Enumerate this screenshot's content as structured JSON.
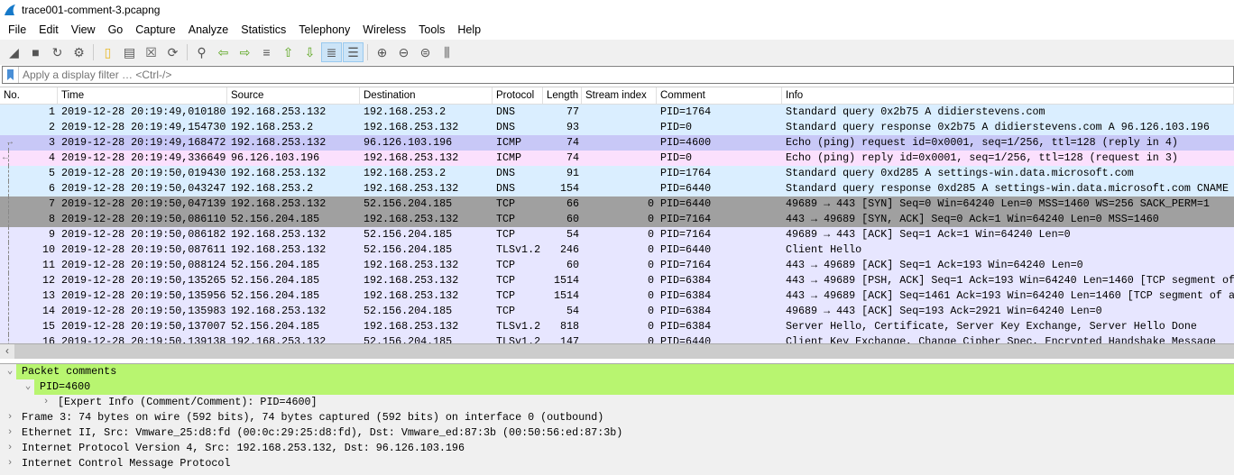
{
  "window": {
    "title": "trace001-comment-3.pcapng"
  },
  "menu": [
    "File",
    "Edit",
    "View",
    "Go",
    "Capture",
    "Analyze",
    "Statistics",
    "Telephony",
    "Wireless",
    "Tools",
    "Help"
  ],
  "toolbar": [
    "shark-fin-start-icon",
    "stop-icon",
    "restart-icon",
    "options-gear-icon",
    "open-file-icon",
    "save-file-icon",
    "close-file-icon",
    "reload-icon",
    "find-icon",
    "back-icon",
    "forward-icon",
    "go-to-packet-icon",
    "first-packet-icon",
    "last-packet-icon",
    "autoscroll-icon",
    "colorize-icon",
    "zoom-in-icon",
    "zoom-out-icon",
    "normal-size-icon",
    "resize-columns-icon"
  ],
  "filter": {
    "placeholder": "Apply a display filter … <Ctrl-/>"
  },
  "colors": {
    "dns": "#daeeff",
    "icmp_req": "#c8c8f7",
    "icmp_rep": "#fbe0fd",
    "tcp_flag": "#a0a0a0",
    "tcp": "#e7e6ff",
    "comment_green": "#b8f570"
  },
  "columns": [
    "No.",
    "Time",
    "Source",
    "Destination",
    "Protocol",
    "Length",
    "Stream index",
    "Comment",
    "Info"
  ],
  "packets": [
    {
      "no": "1",
      "time": "2019-12-28 20:19:49,010180",
      "src": "192.168.253.132",
      "dst": "192.168.253.2",
      "proto": "DNS",
      "len": "77",
      "stream": "",
      "comment": "PID=1764",
      "info": "Standard query 0x2b75 A didierstevens.com",
      "color": "dns"
    },
    {
      "no": "2",
      "time": "2019-12-28 20:19:49,154730",
      "src": "192.168.253.2",
      "dst": "192.168.253.132",
      "proto": "DNS",
      "len": "93",
      "stream": "",
      "comment": "PID=0",
      "info": "Standard query response 0x2b75 A didierstevens.com A 96.126.103.196",
      "color": "dns"
    },
    {
      "no": "3",
      "time": "2019-12-28 20:19:49,168472",
      "src": "192.168.253.132",
      "dst": "96.126.103.196",
      "proto": "ICMP",
      "len": "74",
      "stream": "",
      "comment": "PID=4600",
      "info": "Echo (ping) request  id=0x0001, seq=1/256, ttl=128 (reply in 4)",
      "color": "icmp_req"
    },
    {
      "no": "4",
      "time": "2019-12-28 20:19:49,336649",
      "src": "96.126.103.196",
      "dst": "192.168.253.132",
      "proto": "ICMP",
      "len": "74",
      "stream": "",
      "comment": "PID=0",
      "info": "Echo (ping) reply    id=0x0001, seq=1/256, ttl=128 (request in 3)",
      "color": "icmp_rep"
    },
    {
      "no": "5",
      "time": "2019-12-28 20:19:50,019430",
      "src": "192.168.253.132",
      "dst": "192.168.253.2",
      "proto": "DNS",
      "len": "91",
      "stream": "",
      "comment": "PID=1764",
      "info": "Standard query 0xd285 A settings-win.data.microsoft.com",
      "color": "dns"
    },
    {
      "no": "6",
      "time": "2019-12-28 20:19:50,043247",
      "src": "192.168.253.2",
      "dst": "192.168.253.132",
      "proto": "DNS",
      "len": "154",
      "stream": "",
      "comment": "PID=6440",
      "info": "Standard query response 0xd285 A settings-win.data.microsoft.com CNAME",
      "color": "dns"
    },
    {
      "no": "7",
      "time": "2019-12-28 20:19:50,047139",
      "src": "192.168.253.132",
      "dst": "52.156.204.185",
      "proto": "TCP",
      "len": "66",
      "stream": "0",
      "comment": "PID=6440",
      "info": "49689 → 443 [SYN] Seq=0 Win=64240 Len=0 MSS=1460 WS=256 SACK_PERM=1",
      "color": "tcp_flag"
    },
    {
      "no": "8",
      "time": "2019-12-28 20:19:50,086110",
      "src": "52.156.204.185",
      "dst": "192.168.253.132",
      "proto": "TCP",
      "len": "60",
      "stream": "0",
      "comment": "PID=7164",
      "info": "443 → 49689 [SYN, ACK] Seq=0 Ack=1 Win=64240 Len=0 MSS=1460",
      "color": "tcp_flag"
    },
    {
      "no": "9",
      "time": "2019-12-28 20:19:50,086182",
      "src": "192.168.253.132",
      "dst": "52.156.204.185",
      "proto": "TCP",
      "len": "54",
      "stream": "0",
      "comment": "PID=7164",
      "info": "49689 → 443 [ACK] Seq=1 Ack=1 Win=64240 Len=0",
      "color": "tcp"
    },
    {
      "no": "10",
      "time": "2019-12-28 20:19:50,087611",
      "src": "192.168.253.132",
      "dst": "52.156.204.185",
      "proto": "TLSv1.2",
      "len": "246",
      "stream": "0",
      "comment": "PID=6440",
      "info": "Client Hello",
      "color": "tcp"
    },
    {
      "no": "11",
      "time": "2019-12-28 20:19:50,088124",
      "src": "52.156.204.185",
      "dst": "192.168.253.132",
      "proto": "TCP",
      "len": "60",
      "stream": "0",
      "comment": "PID=7164",
      "info": "443 → 49689 [ACK] Seq=1 Ack=193 Win=64240 Len=0",
      "color": "tcp"
    },
    {
      "no": "12",
      "time": "2019-12-28 20:19:50,135265",
      "src": "52.156.204.185",
      "dst": "192.168.253.132",
      "proto": "TCP",
      "len": "1514",
      "stream": "0",
      "comment": "PID=6384",
      "info": "443 → 49689 [PSH, ACK] Seq=1 Ack=193 Win=64240 Len=1460 [TCP segment of",
      "color": "tcp"
    },
    {
      "no": "13",
      "time": "2019-12-28 20:19:50,135956",
      "src": "52.156.204.185",
      "dst": "192.168.253.132",
      "proto": "TCP",
      "len": "1514",
      "stream": "0",
      "comment": "PID=6384",
      "info": "443 → 49689 [ACK] Seq=1461 Ack=193 Win=64240 Len=1460 [TCP segment of a",
      "color": "tcp"
    },
    {
      "no": "14",
      "time": "2019-12-28 20:19:50,135983",
      "src": "192.168.253.132",
      "dst": "52.156.204.185",
      "proto": "TCP",
      "len": "54",
      "stream": "0",
      "comment": "PID=6384",
      "info": "49689 → 443 [ACK] Seq=193 Ack=2921 Win=64240 Len=0",
      "color": "tcp"
    },
    {
      "no": "15",
      "time": "2019-12-28 20:19:50,137007",
      "src": "52.156.204.185",
      "dst": "192.168.253.132",
      "proto": "TLSv1.2",
      "len": "818",
      "stream": "0",
      "comment": "PID=6384",
      "info": "Server Hello, Certificate, Server Key Exchange, Server Hello Done",
      "color": "tcp"
    },
    {
      "no": "16",
      "time": "2019-12-28 20:19:50,139138",
      "src": "192.168.253.132",
      "dst": "52.156.204.185",
      "proto": "TLSv1.2",
      "len": "147",
      "stream": "0",
      "comment": "PID=6440",
      "info": "Client Key Exchange, Change Cipher Spec, Encrypted Handshake Message",
      "color": "tcp"
    }
  ],
  "details": [
    {
      "text": "Packet comments",
      "indent": 0,
      "expanded": true,
      "green": true
    },
    {
      "text": "PID=4600",
      "indent": 1,
      "expanded": true,
      "green": true
    },
    {
      "text": "[Expert Info (Comment/Comment): PID=4600]",
      "indent": 2,
      "expanded": false,
      "green": false
    },
    {
      "text": "Frame 3: 74 bytes on wire (592 bits), 74 bytes captured (592 bits) on interface 0 (outbound)",
      "indent": 0,
      "expanded": false,
      "green": false
    },
    {
      "text": "Ethernet II, Src: Vmware_25:d8:fd (00:0c:29:25:d8:fd), Dst: Vmware_ed:87:3b (00:50:56:ed:87:3b)",
      "indent": 0,
      "expanded": false,
      "green": false
    },
    {
      "text": "Internet Protocol Version 4, Src: 192.168.253.132, Dst: 96.126.103.196",
      "indent": 0,
      "expanded": false,
      "green": false
    },
    {
      "text": "Internet Control Message Protocol",
      "indent": 0,
      "expanded": false,
      "green": false
    }
  ]
}
